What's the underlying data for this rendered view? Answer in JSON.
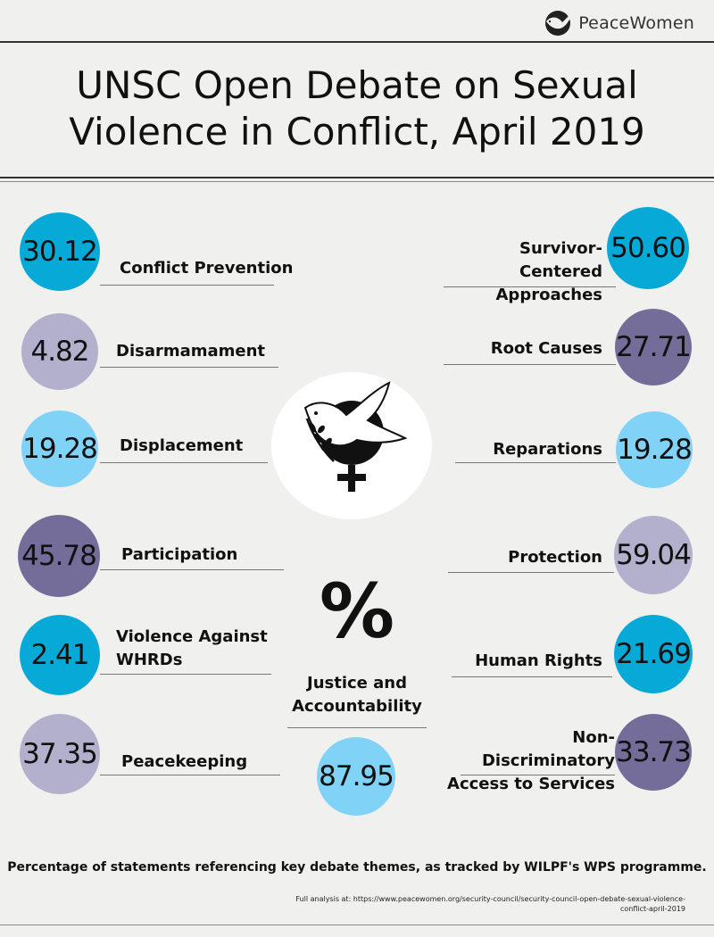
{
  "brand": {
    "logo_text": "PeaceWomen",
    "logo_icon": "dove-logo-icon"
  },
  "title_line1": "UNSC Open Debate on Sexual",
  "title_line2": "Violence in Conflict, April 2019",
  "center_icon": "dove-women-symbol-icon",
  "percent_symbol": "%",
  "colors": {
    "cyan": "#07aad6",
    "lavender": "#b2b0cc",
    "light_blue": "#80d2f6",
    "purple": "#746c99"
  },
  "chart_data": {
    "type": "bubble-list",
    "unit": "%",
    "items": [
      {
        "label": "Conflict Prevention",
        "value": 30.12,
        "value_text": "30.12",
        "color": "#07aad6"
      },
      {
        "label": "Disarmamament",
        "value": 4.82,
        "value_text": "4.82",
        "color": "#b2b0cc"
      },
      {
        "label": "Displacement",
        "value": 19.28,
        "value_text": "19.28",
        "color": "#80d2f6"
      },
      {
        "label": "Participation",
        "value": 45.78,
        "value_text": "45.78",
        "color": "#746c99"
      },
      {
        "label": "Violence Against\nWHRDs",
        "value": 2.41,
        "value_text": "2.41",
        "color": "#07aad6"
      },
      {
        "label": "Peacekeeping",
        "value": 37.35,
        "value_text": "37.35",
        "color": "#b2b0cc"
      },
      {
        "label": "Survivor-Centered\nApproaches",
        "value": 50.6,
        "value_text": "50.60",
        "color": "#07aad6"
      },
      {
        "label": "Root Causes",
        "value": 27.71,
        "value_text": "27.71",
        "color": "#746c99"
      },
      {
        "label": "Reparations",
        "value": 19.28,
        "value_text": "19.28",
        "color": "#80d2f6"
      },
      {
        "label": "Protection",
        "value": 59.04,
        "value_text": "59.04",
        "color": "#b2b0cc"
      },
      {
        "label": "Human Rights",
        "value": 21.69,
        "value_text": "21.69",
        "color": "#07aad6"
      },
      {
        "label": "Non-Discriminatory\nAccess to Services",
        "value": 33.73,
        "value_text": "33.73",
        "color": "#746c99"
      },
      {
        "label": "Justice and\nAccountability",
        "value": 87.95,
        "value_text": "87.95",
        "color": "#80d2f6"
      }
    ]
  },
  "footnote": "Percentage of statements referencing key debate themes, as tracked by WILPF's WPS programme.",
  "source": "Full analysis at: https://www.peacewomen.org/security-council/security-council-open-debate-sexual-violence-conflict-april-2019"
}
